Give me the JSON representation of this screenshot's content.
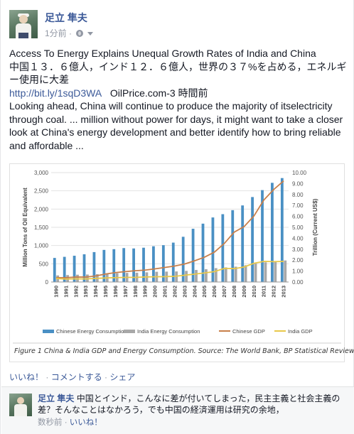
{
  "post": {
    "author": "足立 隼夫",
    "time": "1分前",
    "title": "Access To Energy Explains Unequal Growth Rates of India and China",
    "summary_ja": "中国１３．６億人，インド１２．６億人，世界の３７%を占める，エネルギー使用に大差",
    "link": "http://bit.ly/1sqD3WA",
    "source": "OilPrice.com-3 時間前",
    "excerpt": "Looking ahead, China will continue to produce the majority of itselectricity through coal. ... million without power for days, it might want to take a closer look at China's energy development and better identify how to bring reliable and affordable ..."
  },
  "actions": {
    "like": "いいね！",
    "comment": "コメントする",
    "share": "シェア",
    "sep": " · "
  },
  "comment": {
    "author": "足立 隼夫",
    "text": "中国とインド，こんなに差が付いてしまった，民主主義と社会主義の差？そんなことはなかろう，でも中国の経済運用は研究の余地，",
    "time": "数秒前",
    "like": "いいね！"
  },
  "figure": {
    "caption": "Figure 1 China & India GDP and Energy Consumption. Source: The World Bank, BP Statistical Review"
  },
  "chart_data": {
    "type": "bar",
    "categories": [
      "1990",
      "1991",
      "1992",
      "1993",
      "1994",
      "1995",
      "1996",
      "1997",
      "1998",
      "1999",
      "2000",
      "2001",
      "2002",
      "2003",
      "2004",
      "2005",
      "2006",
      "2007",
      "2008",
      "2009",
      "2010",
      "2011",
      "2012",
      "2013"
    ],
    "series": [
      {
        "name": "Chinese Energy Consumption",
        "kind": "bar",
        "axis": "left",
        "color": "#4a90c4",
        "values": [
          660,
          690,
          720,
          760,
          820,
          880,
          900,
          930,
          920,
          940,
          980,
          1010,
          1080,
          1240,
          1460,
          1600,
          1770,
          1860,
          1970,
          2100,
          2330,
          2520,
          2720,
          2850
        ]
      },
      {
        "name": "India Energy Consumption",
        "kind": "bar",
        "axis": "left",
        "color": "#a8a8a8",
        "values": [
          180,
          190,
          200,
          205,
          215,
          230,
          240,
          250,
          255,
          265,
          280,
          285,
          290,
          305,
          330,
          350,
          380,
          400,
          420,
          460,
          510,
          540,
          560,
          590
        ]
      },
      {
        "name": "Chinese GDP",
        "kind": "line",
        "axis": "right",
        "color": "#c87f4a",
        "values": [
          0.4,
          0.4,
          0.45,
          0.45,
          0.55,
          0.73,
          0.86,
          0.95,
          1.03,
          1.09,
          1.2,
          1.33,
          1.46,
          1.65,
          1.94,
          2.27,
          2.73,
          3.52,
          4.56,
          5.06,
          6.04,
          7.5,
          8.46,
          9.24
        ]
      },
      {
        "name": "India GDP",
        "kind": "line",
        "axis": "right",
        "color": "#e8c84a",
        "values": [
          0.32,
          0.27,
          0.29,
          0.28,
          0.33,
          0.37,
          0.4,
          0.42,
          0.42,
          0.46,
          0.48,
          0.49,
          0.52,
          0.62,
          0.72,
          0.83,
          0.95,
          1.24,
          1.22,
          1.37,
          1.71,
          1.88,
          1.86,
          1.88
        ]
      }
    ],
    "ylabel": "Million Tons of Oil Equivalent",
    "ylabel_right": "Trillion (Current US$)",
    "ylim": [
      0,
      3000
    ],
    "yticks": [
      "0",
      "500",
      "1,000",
      "1,500",
      "2,000",
      "2,500",
      "3,000"
    ],
    "ylim_right": [
      0,
      10
    ],
    "yticks_right": [
      "0.00",
      "1.00",
      "2.00",
      "3.00",
      "4.00",
      "5.00",
      "6.00",
      "7.00",
      "8.00",
      "9.00",
      "10.00"
    ],
    "grid": true,
    "legend": "bottom"
  }
}
